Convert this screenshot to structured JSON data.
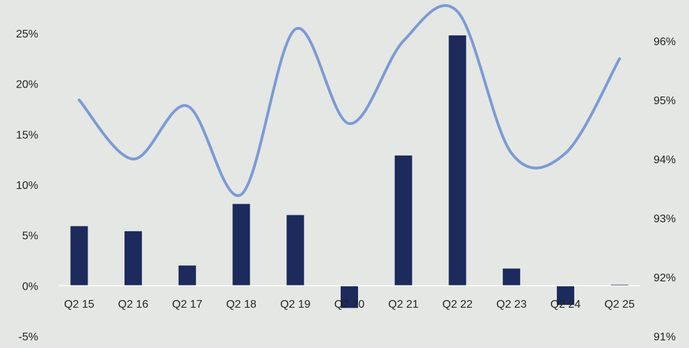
{
  "chart_data": {
    "type": "bar+line",
    "title": "",
    "categories": [
      "Q2 15",
      "Q2 16",
      "Q2 17",
      "Q2 18",
      "Q2 19",
      "Q2 20",
      "Q2 21",
      "Q2 22",
      "Q2 23",
      "Q2 24",
      "Q2 25"
    ],
    "series": [
      {
        "type": "bar",
        "axis": "left",
        "color": "#1c2a5c",
        "values": [
          5.9,
          5.4,
          2.0,
          8.1,
          7.0,
          -2.2,
          12.9,
          24.8,
          1.7,
          -1.9,
          0.1
        ]
      },
      {
        "type": "line",
        "axis": "right",
        "color": "#7b9bd4",
        "smooth": true,
        "values": [
          95.0,
          94.0,
          94.9,
          93.4,
          96.2,
          94.6,
          96.0,
          96.5,
          94.1,
          94.1,
          95.7
        ]
      }
    ],
    "y_left": {
      "min": -5,
      "max": 25,
      "ticks": [
        "25%",
        "20%",
        "15%",
        "10%",
        "5%",
        "0%",
        "-5%"
      ]
    },
    "y_right": {
      "min": 91,
      "max": 96,
      "ticks": [
        "96%",
        "95%",
        "94%",
        "93%",
        "92%",
        "91%"
      ]
    },
    "grid": false,
    "legend": "none"
  }
}
